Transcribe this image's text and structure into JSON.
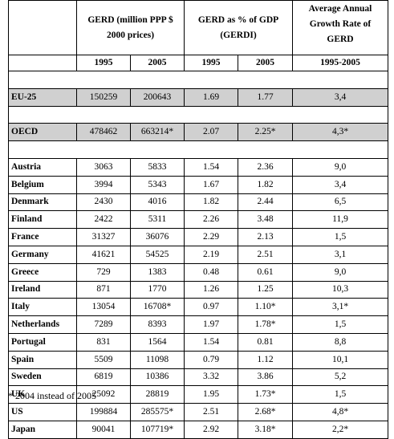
{
  "table": {
    "headers": {
      "gerd_group": "GERD (million PPP $ 2000 prices)",
      "gerdi_group": "GERD as % of GDP (GERDI)",
      "growth_group": "Average Annual Growth Rate of GERD",
      "gerd_1995": "1995",
      "gerd_2005": "2005",
      "gerdi_1995": "1995",
      "gerdi_2005": "2005",
      "growth_period": "1995-2005"
    },
    "aggregate_rows": [
      {
        "country": "EU-25",
        "gerd_1995": "150259",
        "gerd_2005": "200643",
        "gerdi_1995": "1.69",
        "gerdi_2005": "1.77",
        "growth": "3,4"
      },
      {
        "country": "OECD",
        "gerd_1995": "478462",
        "gerd_2005": "663214*",
        "gerdi_1995": "2.07",
        "gerdi_2005": "2.25*",
        "growth": "4,3*"
      }
    ],
    "country_rows": [
      {
        "country": "Austria",
        "gerd_1995": "3063",
        "gerd_2005": "5833",
        "gerdi_1995": "1.54",
        "gerdi_2005": "2.36",
        "growth": "9,0"
      },
      {
        "country": "Belgium",
        "gerd_1995": "3994",
        "gerd_2005": "5343",
        "gerdi_1995": "1.67",
        "gerdi_2005": "1.82",
        "growth": "3,4"
      },
      {
        "country": "Denmark",
        "gerd_1995": "2430",
        "gerd_2005": "4016",
        "gerdi_1995": "1.82",
        "gerdi_2005": "2.44",
        "growth": "6,5"
      },
      {
        "country": "Finland",
        "gerd_1995": "2422",
        "gerd_2005": "5311",
        "gerdi_1995": "2.26",
        "gerdi_2005": "3.48",
        "growth": "11,9"
      },
      {
        "country": "France",
        "gerd_1995": "31327",
        "gerd_2005": "36076",
        "gerdi_1995": "2.29",
        "gerdi_2005": "2.13",
        "growth": "1,5"
      },
      {
        "country": "Germany",
        "gerd_1995": "41621",
        "gerd_2005": "54525",
        "gerdi_1995": "2.19",
        "gerdi_2005": "2.51",
        "growth": "3,1"
      },
      {
        "country": "Greece",
        "gerd_1995": "729",
        "gerd_2005": "1383",
        "gerdi_1995": "0.48",
        "gerdi_2005": "0.61",
        "growth": "9,0"
      },
      {
        "country": "Ireland",
        "gerd_1995": "871",
        "gerd_2005": "1770",
        "gerdi_1995": "1.26",
        "gerdi_2005": "1.25",
        "growth": "10,3"
      },
      {
        "country": "Italy",
        "gerd_1995": "13054",
        "gerd_2005": "16708*",
        "gerdi_1995": "0.97",
        "gerdi_2005": "1.10*",
        "growth": "3,1*"
      },
      {
        "country": "Netherlands",
        "gerd_1995": "7289",
        "gerd_2005": "8393",
        "gerdi_1995": "1.97",
        "gerdi_2005": "1.78*",
        "growth": "1,5"
      },
      {
        "country": "Portugal",
        "gerd_1995": "831",
        "gerd_2005": "1564",
        "gerdi_1995": "1.54",
        "gerdi_2005": "0.81",
        "growth": "8,8"
      },
      {
        "country": "Spain",
        "gerd_1995": "5509",
        "gerd_2005": "11098",
        "gerdi_1995": "0.79",
        "gerdi_2005": "1.12",
        "growth": "10,1"
      },
      {
        "country": "Sweden",
        "gerd_1995": "6819",
        "gerd_2005": "10386",
        "gerdi_1995": "3.32",
        "gerdi_2005": "3.86",
        "growth": "5,2"
      },
      {
        "country": "UK",
        "gerd_1995": "25092",
        "gerd_2005": "28819",
        "gerdi_1995": "1.95",
        "gerdi_2005": "1.73*",
        "growth": "1,5"
      },
      {
        "country": "US",
        "gerd_1995": "199884",
        "gerd_2005": "285575*",
        "gerdi_1995": "2.51",
        "gerdi_2005": "2.68*",
        "growth": "4,8*"
      },
      {
        "country": "Japan",
        "gerd_1995": "90041",
        "gerd_2005": "107719*",
        "gerdi_1995": "2.92",
        "gerdi_2005": "3.18*",
        "growth": "2,2*"
      }
    ],
    "shade_color": "#d0d0d0"
  },
  "footnote": "* 2004 instead of 2005"
}
